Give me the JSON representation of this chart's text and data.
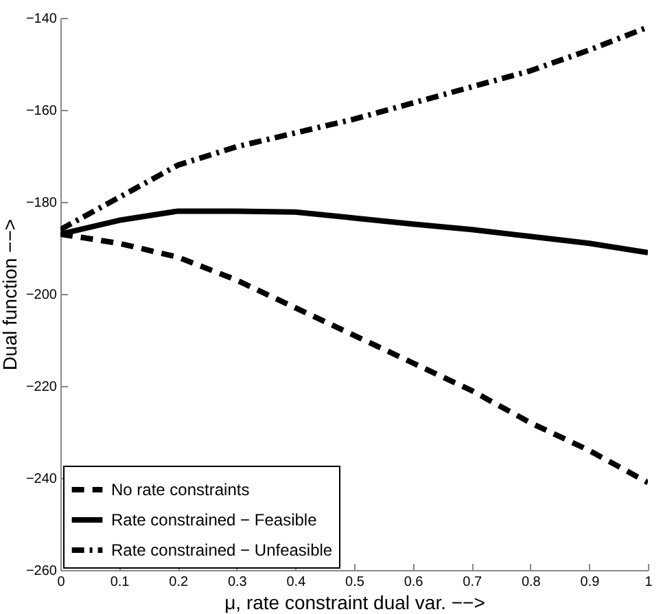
{
  "chart_data": {
    "type": "line",
    "xlabel": "μ,  rate constraint dual var. −−>",
    "ylabel": "Dual function −−>",
    "x": [
      0,
      0.1,
      0.2,
      0.3,
      0.4,
      0.5,
      0.6,
      0.7,
      0.8,
      0.9,
      1
    ],
    "series": [
      {
        "name": "No rate constraints",
        "color": "#000000",
        "line_style": "dashed",
        "values": [
          -187,
          -189,
          -192,
          -197,
          -203,
          -209,
          -215,
          -221,
          -228,
          -234,
          -241
        ]
      },
      {
        "name": "Rate constrained − Feasible",
        "color": "#000000",
        "line_style": "solid",
        "values": [
          -187,
          -184,
          -182,
          -182,
          -182.2,
          -183.5,
          -184.8,
          -186,
          -187.5,
          -189,
          -191
        ]
      },
      {
        "name": "Rate constrained − Unfeasible",
        "color": "#000000",
        "line_style": "dashdot",
        "values": [
          -186,
          -179,
          -172,
          -168,
          -165,
          -162,
          -158.5,
          -155,
          -151.5,
          -147,
          -142
        ]
      }
    ],
    "xlim": [
      0,
      1
    ],
    "xticks": [
      0,
      0.1,
      0.2,
      0.3,
      0.4,
      0.5,
      0.6,
      0.7,
      0.8,
      0.9,
      1
    ],
    "ylim": [
      -260,
      -140
    ],
    "yticks": [
      -260,
      -240,
      -220,
      -200,
      -180,
      -160,
      -140
    ],
    "grid": false,
    "legend": "bottom left"
  }
}
